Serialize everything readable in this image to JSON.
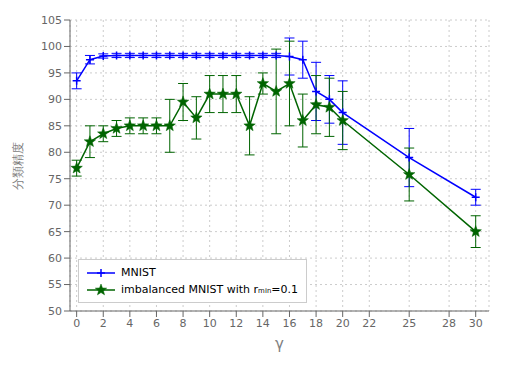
{
  "chart_data": {
    "type": "line",
    "xlabel": "γ",
    "ylabel": "分類精度",
    "series": [
      {
        "name": "MNIST",
        "color": "#0000ff",
        "marker": "plus",
        "x": [
          0,
          1,
          2,
          3,
          4,
          5,
          6,
          7,
          8,
          9,
          10,
          11,
          12,
          13,
          14,
          15,
          16,
          17,
          18,
          19,
          20,
          25,
          30
        ],
        "values": [
          93.5,
          97.5,
          98.2,
          98.3,
          98.3,
          98.3,
          98.3,
          98.3,
          98.3,
          98.3,
          98.3,
          98.3,
          98.3,
          98.3,
          98.3,
          98.3,
          98.1,
          97.5,
          91.5,
          90.0,
          87.5,
          79.0,
          71.5
        ],
        "errors": [
          1.5,
          0.8,
          0.4,
          0.4,
          0.4,
          0.4,
          0.4,
          0.4,
          0.4,
          0.4,
          0.4,
          0.4,
          0.4,
          0.4,
          0.4,
          0.4,
          3.5,
          3.5,
          5.5,
          4.5,
          6.0,
          5.5,
          1.5
        ]
      },
      {
        "name": "imbalanced MNIST with rₘᵢₙ=0.1",
        "color": "#006400",
        "marker": "star",
        "x": [
          0,
          1,
          2,
          3,
          4,
          5,
          6,
          7,
          8,
          9,
          10,
          11,
          12,
          13,
          14,
          15,
          16,
          17,
          18,
          19,
          20,
          25,
          30
        ],
        "values": [
          77.0,
          82.0,
          83.5,
          84.5,
          85.0,
          85.0,
          85.0,
          85.0,
          89.5,
          86.5,
          91.0,
          91.0,
          91.0,
          85.0,
          93.0,
          91.5,
          93.0,
          86.0,
          89.0,
          88.5,
          86.0,
          75.8,
          65.0
        ],
        "errors": [
          1.5,
          3.0,
          1.5,
          1.5,
          1.5,
          1.5,
          1.5,
          5.0,
          3.5,
          4.0,
          3.5,
          3.5,
          3.5,
          5.5,
          2.0,
          8.0,
          8.0,
          5.0,
          5.5,
          5.5,
          5.5,
          5.0,
          3.0
        ]
      }
    ],
    "xlim": [
      -0.5,
      31
    ],
    "ylim": [
      50,
      105
    ],
    "xticks": [
      0,
      2,
      4,
      6,
      8,
      10,
      12,
      14,
      16,
      18,
      20,
      22,
      25,
      28,
      30
    ],
    "yticks": [
      50,
      55,
      60,
      65,
      70,
      75,
      80,
      85,
      90,
      95,
      100,
      105
    ],
    "grid": true,
    "legend": "lower left"
  }
}
